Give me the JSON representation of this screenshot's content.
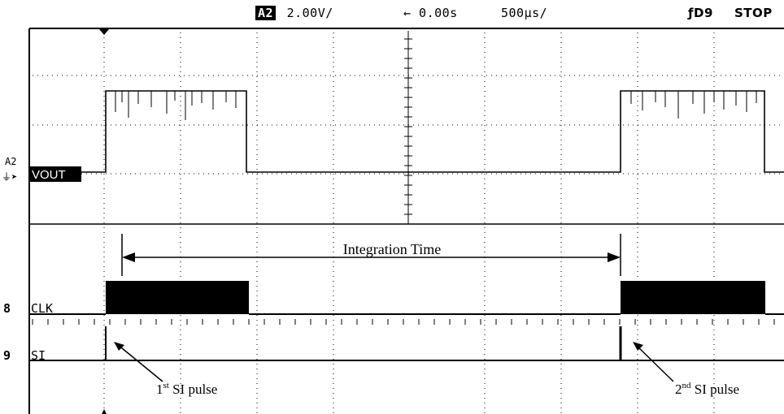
{
  "status_bar": {
    "channel": "A2",
    "scale": "2.00V/",
    "time_offset": "← 0.00s",
    "timebase": "500µs/",
    "trigger": "ƒD9",
    "run_state": "STOP"
  },
  "analog_channel": {
    "id_label": "A2",
    "name": "VOUT"
  },
  "digital_channels": [
    {
      "number": "8",
      "name": "CLK"
    },
    {
      "number": "9",
      "name": "SI"
    }
  ],
  "annotations": {
    "integration_time": "Integration Time",
    "first_pulse_prefix": "1",
    "first_pulse_sup": "st",
    "first_pulse_suffix": " SI pulse",
    "second_pulse_prefix": "2",
    "second_pulse_sup": "nd",
    "second_pulse_suffix": " SI pulse"
  },
  "colors": {
    "background": "#ffffff",
    "trace": "#000000",
    "grid": "#000000"
  }
}
